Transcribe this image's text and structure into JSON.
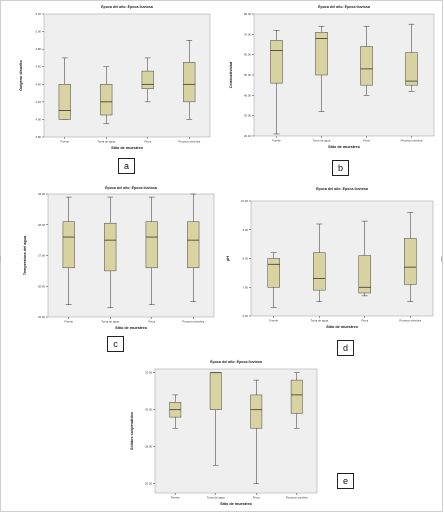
{
  "chart_data": [
    {
      "id": "a",
      "type": "box",
      "title": "Época del año: Época lluviosa",
      "xlabel": "Sitio de muestreo",
      "ylabel": "Oxígeno disuelto",
      "categories": [
        "Fuente",
        "Toma de agua",
        "Finca",
        "Proyecto siembra"
      ],
      "yticks": [
        "3.80",
        "4.00",
        "4.20",
        "4.40",
        "4.60",
        "4.80",
        "5.00",
        "5.20"
      ],
      "ylim": [
        3.8,
        5.2
      ],
      "boxes": [
        {
          "min": 4.0,
          "q1": 4.0,
          "median": 4.1,
          "q3": 4.4,
          "max": 4.7
        },
        {
          "min": 3.95,
          "q1": 4.05,
          "median": 4.2,
          "q3": 4.4,
          "max": 4.6
        },
        {
          "min": 4.2,
          "q1": 4.35,
          "median": 4.4,
          "q3": 4.55,
          "max": 4.7
        },
        {
          "min": 4.0,
          "q1": 4.2,
          "median": 4.4,
          "q3": 4.65,
          "max": 4.9
        }
      ]
    },
    {
      "id": "b",
      "type": "box",
      "title": "Época del año: Época lluviosa",
      "xlabel": "Sitio de muestreo",
      "ylabel": "Conductividad",
      "categories": [
        "Fuente",
        "Toma de agua",
        "Finca",
        "Proyecto siembra"
      ],
      "yticks": [
        "20.00",
        "30.00",
        "40.00",
        "50.00",
        "60.00",
        "70.00",
        "80.00"
      ],
      "ylim": [
        20,
        80
      ],
      "boxes": [
        {
          "min": 21,
          "q1": 46,
          "median": 62,
          "q3": 67,
          "max": 72
        },
        {
          "min": 32,
          "q1": 50,
          "median": 68,
          "q3": 71,
          "max": 74
        },
        {
          "min": 40,
          "q1": 45,
          "median": 53,
          "q3": 64,
          "max": 74
        },
        {
          "min": 42,
          "q1": 45,
          "median": 47,
          "q3": 61,
          "max": 75
        }
      ]
    },
    {
      "id": "c",
      "type": "box",
      "title": "Época del año: Época lluviosa",
      "xlabel": "Sitio de muestreo",
      "ylabel": "Temperatura del agua",
      "categories": [
        "Fuente",
        "Toma de agua",
        "Finca",
        "Proyecto siembra"
      ],
      "yticks": [
        "25.00",
        "26.00",
        "27.00",
        "28.00",
        "29.00"
      ],
      "ylim": [
        25,
        29
      ],
      "boxes": [
        {
          "min": 25.4,
          "q1": 26.6,
          "median": 27.6,
          "q3": 28.1,
          "max": 28.9
        },
        {
          "min": 25.3,
          "q1": 26.5,
          "median": 27.5,
          "q3": 28.05,
          "max": 28.9
        },
        {
          "min": 25.4,
          "q1": 26.6,
          "median": 27.6,
          "q3": 28.1,
          "max": 28.9
        },
        {
          "min": 25.5,
          "q1": 26.6,
          "median": 27.5,
          "q3": 28.1,
          "max": 29.0
        }
      ]
    },
    {
      "id": "d",
      "type": "box",
      "title": "Época del año: Época lluviosa",
      "xlabel": "Sitio de muestreo",
      "ylabel": "pH",
      "categories": [
        "Fuente",
        "Toma de agua",
        "Finca",
        "Proyecto siembra"
      ],
      "yticks": [
        "6.00",
        "7.00",
        "8.00",
        "9.00",
        "10.00"
      ],
      "ylim": [
        6,
        10
      ],
      "boxes": [
        {
          "min": 6.3,
          "q1": 7.0,
          "median": 7.8,
          "q3": 8.0,
          "max": 8.2
        },
        {
          "min": 6.5,
          "q1": 6.9,
          "median": 7.3,
          "q3": 8.2,
          "max": 9.2
        },
        {
          "min": 6.7,
          "q1": 6.8,
          "median": 7.0,
          "q3": 8.1,
          "max": 9.3
        },
        {
          "min": 6.5,
          "q1": 7.1,
          "median": 7.7,
          "q3": 8.7,
          "max": 9.6
        }
      ]
    },
    {
      "id": "e",
      "type": "box",
      "title": "Época del año: Época lluviosa",
      "xlabel": "Sitio de muestreo",
      "ylabel": "Sólidos suspendidos",
      "categories": [
        "Fuente",
        "Toma de agua",
        "Finca",
        "Proyecto siembra"
      ],
      "yticks": [
        "26.00",
        "28.00",
        "30.00",
        "32.00"
      ],
      "ylim": [
        25.5,
        32.2
      ],
      "boxes": [
        {
          "min": 29.0,
          "q1": 29.6,
          "median": 30.0,
          "q3": 30.4,
          "max": 30.8
        },
        {
          "min": 27.0,
          "q1": 30.0,
          "median": 32.0,
          "q3": 32.0,
          "max": 32.0
        },
        {
          "min": 26.0,
          "q1": 29.0,
          "median": 30.0,
          "q3": 30.8,
          "max": 31.6
        },
        {
          "min": 29.0,
          "q1": 29.8,
          "median": 30.8,
          "q3": 31.6,
          "max": 32.0
        }
      ]
    }
  ]
}
